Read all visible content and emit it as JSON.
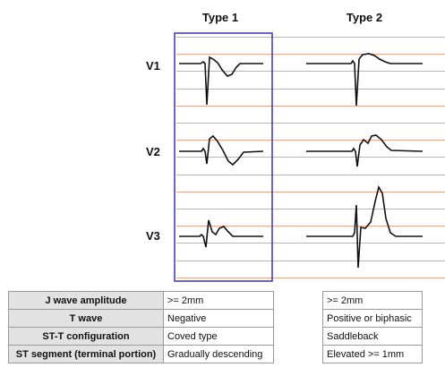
{
  "columns": {
    "type1": "Type 1",
    "type2": "Type 2"
  },
  "leads": [
    "V1",
    "V2",
    "V3"
  ],
  "colors": {
    "grid_line": "#e8a58f",
    "highlight_box": "#3a33b5",
    "trace": "#111111",
    "label_bg": "#e2e2e2",
    "table_border": "#9a9a9a"
  },
  "table": {
    "rows": [
      {
        "label": "J wave amplitude",
        "type1": ">= 2mm",
        "type2": ">= 2mm"
      },
      {
        "label": "T wave",
        "type1": "Negative",
        "type2": "Positive or biphasic"
      },
      {
        "label": "ST-T configuration",
        "type1": "Coved type",
        "type2": "Saddleback"
      },
      {
        "label": "ST segment (terminal portion)",
        "type1": "Gradually descending",
        "type2": "Elevated >= 1mm"
      }
    ]
  }
}
